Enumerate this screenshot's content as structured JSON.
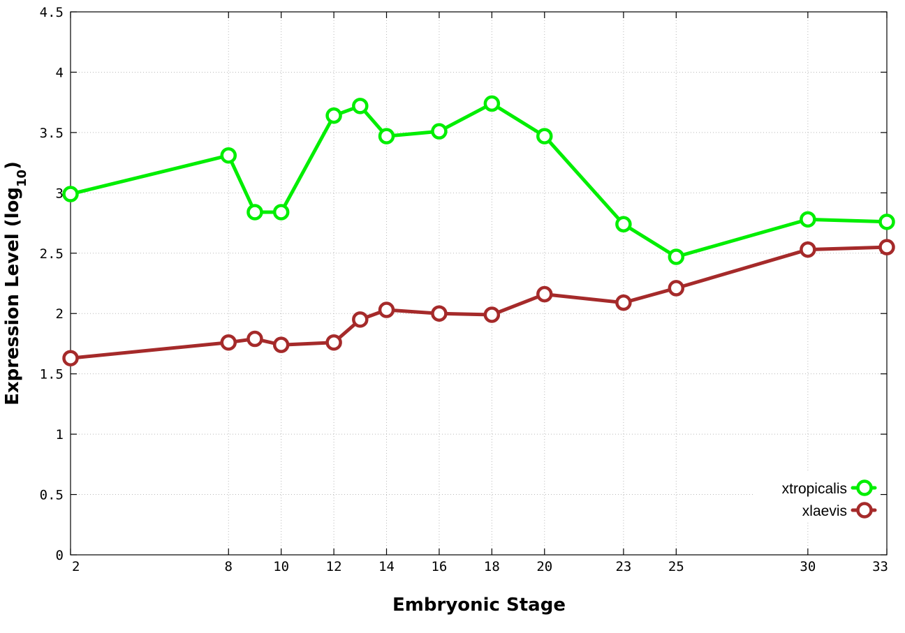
{
  "chart_data": {
    "type": "line",
    "title": "",
    "xlabel": "Embryonic Stage",
    "ylabel": {
      "main": "Expression Level (log",
      "subscript": "10",
      "close": ")"
    },
    "x": [
      2,
      8,
      9,
      10,
      12,
      13,
      14,
      16,
      18,
      20,
      23,
      25,
      30,
      33
    ],
    "x_ticks": [
      2,
      8,
      10,
      12,
      14,
      16,
      18,
      20,
      23,
      25,
      30,
      33
    ],
    "x_tick_labels": [
      "2",
      "8",
      "10",
      "12",
      "14",
      "16",
      "18",
      "20",
      "23",
      "25",
      "30",
      "33"
    ],
    "xlim": [
      2,
      33
    ],
    "ylim": [
      0,
      4.5
    ],
    "y_ticks": [
      0,
      0.5,
      1,
      1.5,
      2,
      2.5,
      3,
      3.5,
      4,
      4.5
    ],
    "y_tick_labels": [
      "0",
      "0.5",
      "1",
      "1.5",
      "2",
      "2.5",
      "3",
      "3.5",
      "4",
      "4.5"
    ],
    "grid": true,
    "legend_position": "bottom-right",
    "series": [
      {
        "name": "xtropicalis",
        "color": "#00ee00",
        "marker": "open-circle",
        "values": [
          2.99,
          3.31,
          2.84,
          2.84,
          3.64,
          3.72,
          3.47,
          3.51,
          3.74,
          3.47,
          2.74,
          2.47,
          2.78,
          2.76
        ]
      },
      {
        "name": "xlaevis",
        "color": "#a52a2a",
        "marker": "open-circle",
        "values": [
          1.63,
          1.76,
          1.79,
          1.74,
          1.76,
          1.95,
          2.03,
          2.0,
          1.99,
          2.16,
          2.09,
          2.21,
          2.53,
          2.55
        ]
      }
    ]
  }
}
